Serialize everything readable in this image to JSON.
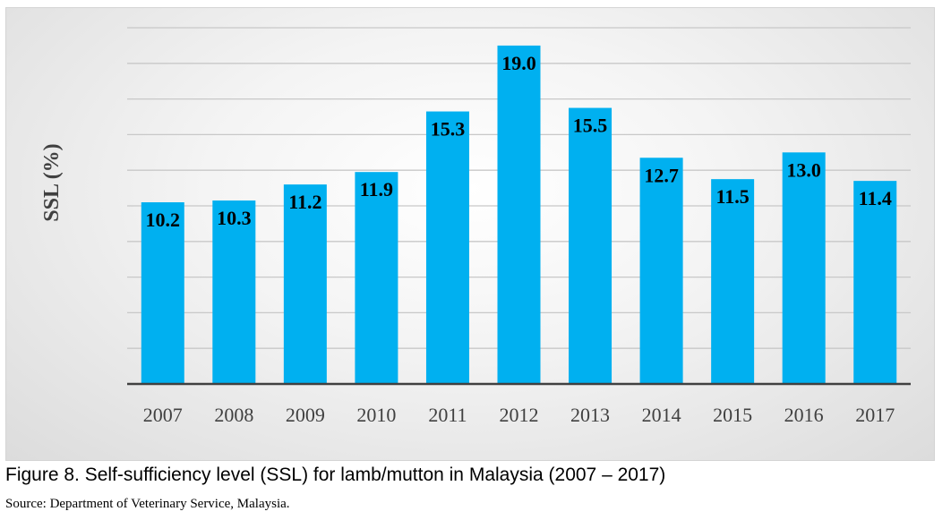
{
  "chart_data": {
    "type": "bar",
    "categories": [
      "2007",
      "2008",
      "2009",
      "2010",
      "2011",
      "2012",
      "2013",
      "2014",
      "2015",
      "2016",
      "2017"
    ],
    "values": [
      10.2,
      10.3,
      11.2,
      11.9,
      15.3,
      19.0,
      15.5,
      12.7,
      11.5,
      13.0,
      11.4
    ],
    "value_labels": [
      "10.2",
      "10.3",
      "11.2",
      "11.9",
      "15.3",
      "19.0",
      "15.5",
      "12.7",
      "11.5",
      "13.0",
      "11.4"
    ],
    "title": "",
    "xlabel": "",
    "ylabel": "SSL (%)",
    "ylim": [
      0,
      20
    ],
    "y_tick_labels_visible": false,
    "grid": true,
    "legend": "none",
    "bar_color": "#00B0F0"
  },
  "caption": {
    "text": "Figure 8. Self-sufficiency level (SSL) for lamb/mutton in Malaysia (2007 – 2017)",
    "source": "Source: Department of Veterinary Service, Malaysia."
  }
}
